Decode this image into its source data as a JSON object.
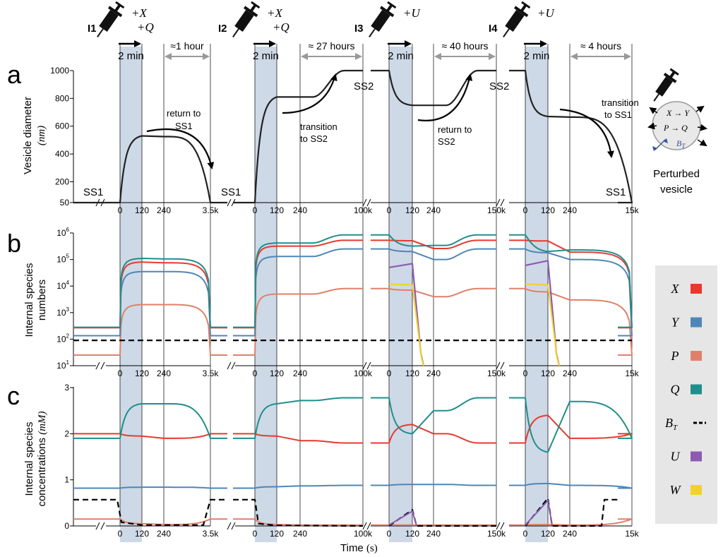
{
  "panel_letters": [
    "a",
    "b",
    "c"
  ],
  "injections": [
    {
      "label": "I1",
      "reagents": "+X +Q",
      "duration": "2 min",
      "gap": "≈1 hour"
    },
    {
      "label": "I2",
      "reagents": "+X +Q",
      "duration": "2 min",
      "gap": "≈ 27 hours"
    },
    {
      "label": "I3",
      "reagents": "+U",
      "duration": "2 min",
      "gap": "≈ 40 hours"
    },
    {
      "label": "I4",
      "reagents": "+U",
      "duration": "2 min",
      "gap": "≈ 4 hours"
    }
  ],
  "time_ticks": [
    [
      "0",
      "120",
      "240",
      "3.5k"
    ],
    [
      "0",
      "120",
      "240",
      "100k"
    ],
    [
      "0",
      "120",
      "240",
      "150k"
    ],
    [
      "0",
      "120",
      "240",
      "15k"
    ]
  ],
  "x_axis_label": "Time",
  "x_axis_unit": "(s)",
  "panel_a": {
    "ylabel": "Vesicle diameter",
    "yunit": "(nm)",
    "yticks": [
      "50",
      "200",
      "400",
      "600",
      "800",
      "1000"
    ],
    "state_labels": {
      "ss1": "SS1",
      "ss2": "SS2"
    },
    "annotations": {
      "return_ss1": "return to SS1",
      "transition_ss2": "transition to SS2",
      "return_ss2": "return to SS2",
      "transition_ss1": "transition to SS1"
    }
  },
  "panel_b": {
    "ylabel": "Internal species numbers",
    "yticks": [
      "10^1",
      "10^2",
      "10^3",
      "10^4",
      "10^5",
      "10^6"
    ]
  },
  "panel_c": {
    "ylabel": "Internal species concentrations",
    "yunit": "(mM)",
    "yticks": [
      "0",
      "1",
      "2",
      "3"
    ]
  },
  "vesicle": {
    "reactions": [
      "X → Y",
      "P → Q",
      "B_T"
    ],
    "caption": "Perturbed vesicle"
  },
  "legend": [
    {
      "name": "X",
      "color": "#e8392f",
      "style": "solid"
    },
    {
      "name": "Y",
      "color": "#4f86b8",
      "style": "solid"
    },
    {
      "name": "P",
      "color": "#e0806a",
      "style": "solid"
    },
    {
      "name": "Q",
      "color": "#1f8f8c",
      "style": "solid"
    },
    {
      "name": "B_T",
      "color": "#000000",
      "style": "dashed"
    },
    {
      "name": "U",
      "color": "#8c5bb0",
      "style": "solid"
    },
    {
      "name": "W",
      "color": "#f2d228",
      "style": "solid"
    }
  ],
  "colors": {
    "shade": "#cdd9e6",
    "legend_bg": "#e6e6e6",
    "annotation_gray": "#999999"
  },
  "chart_data": {
    "type": "line",
    "segments": 4,
    "diameter_nm": {
      "I1": {
        "start": 50,
        "end_of_injection": 530,
        "end": 50
      },
      "I2": {
        "start": 50,
        "end_of_injection": 810,
        "end": 1000
      },
      "I3": {
        "start": 1000,
        "end_of_injection": 750,
        "end": 1000
      },
      "I4": {
        "start": 1000,
        "end_of_injection": 670,
        "end": 50
      }
    },
    "species_numbers_steady": {
      "SS1": {
        "X": 270,
        "Y": 130,
        "P": 25,
        "Q": 270,
        "B_T": 90
      },
      "SS2": {
        "X": 500000,
        "Y": 250000,
        "P": 8000,
        "Q": 900000,
        "B_T": 90
      }
    },
    "concentrations_mM_steady": {
      "SS1": {
        "X": 2.0,
        "Y": 0.82,
        "P": 0.15,
        "Q": 1.9,
        "B_T": 0.57
      },
      "SS2": {
        "X": 1.8,
        "Y": 0.88,
        "P": 0.02,
        "Q": 2.78,
        "B_T": 0.0
      }
    },
    "ylim_a": [
      50,
      1000
    ],
    "ylim_b": [
      10,
      1000000
    ],
    "ylim_c": [
      0,
      3
    ]
  }
}
